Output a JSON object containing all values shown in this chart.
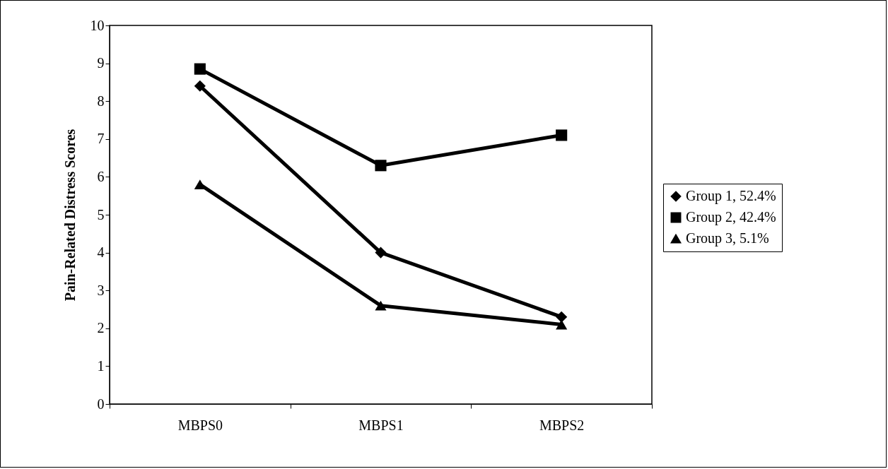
{
  "chart_data": {
    "type": "line",
    "ylabel": "Pain-Related Distress Scores",
    "categories": [
      "MBPS0",
      "MBPS1",
      "MBPS2"
    ],
    "series": [
      {
        "name": "Group 1, 52.4%",
        "color": "#000000",
        "marker": "diamond",
        "values": [
          8.4,
          4.0,
          2.3
        ]
      },
      {
        "name": "Group 2, 42.4%",
        "color": "#000000",
        "marker": "square",
        "values": [
          8.85,
          6.3,
          7.1
        ]
      },
      {
        "name": "Group 3, 5.1%",
        "color": "#000000",
        "marker": "triangle",
        "values": [
          5.8,
          2.6,
          2.1
        ]
      }
    ],
    "ylim": [
      0,
      10
    ],
    "yticks": [
      0,
      1,
      2,
      3,
      4,
      5,
      6,
      7,
      8,
      9,
      10
    ],
    "grid": false,
    "legend": "right",
    "line_style": "solid"
  }
}
